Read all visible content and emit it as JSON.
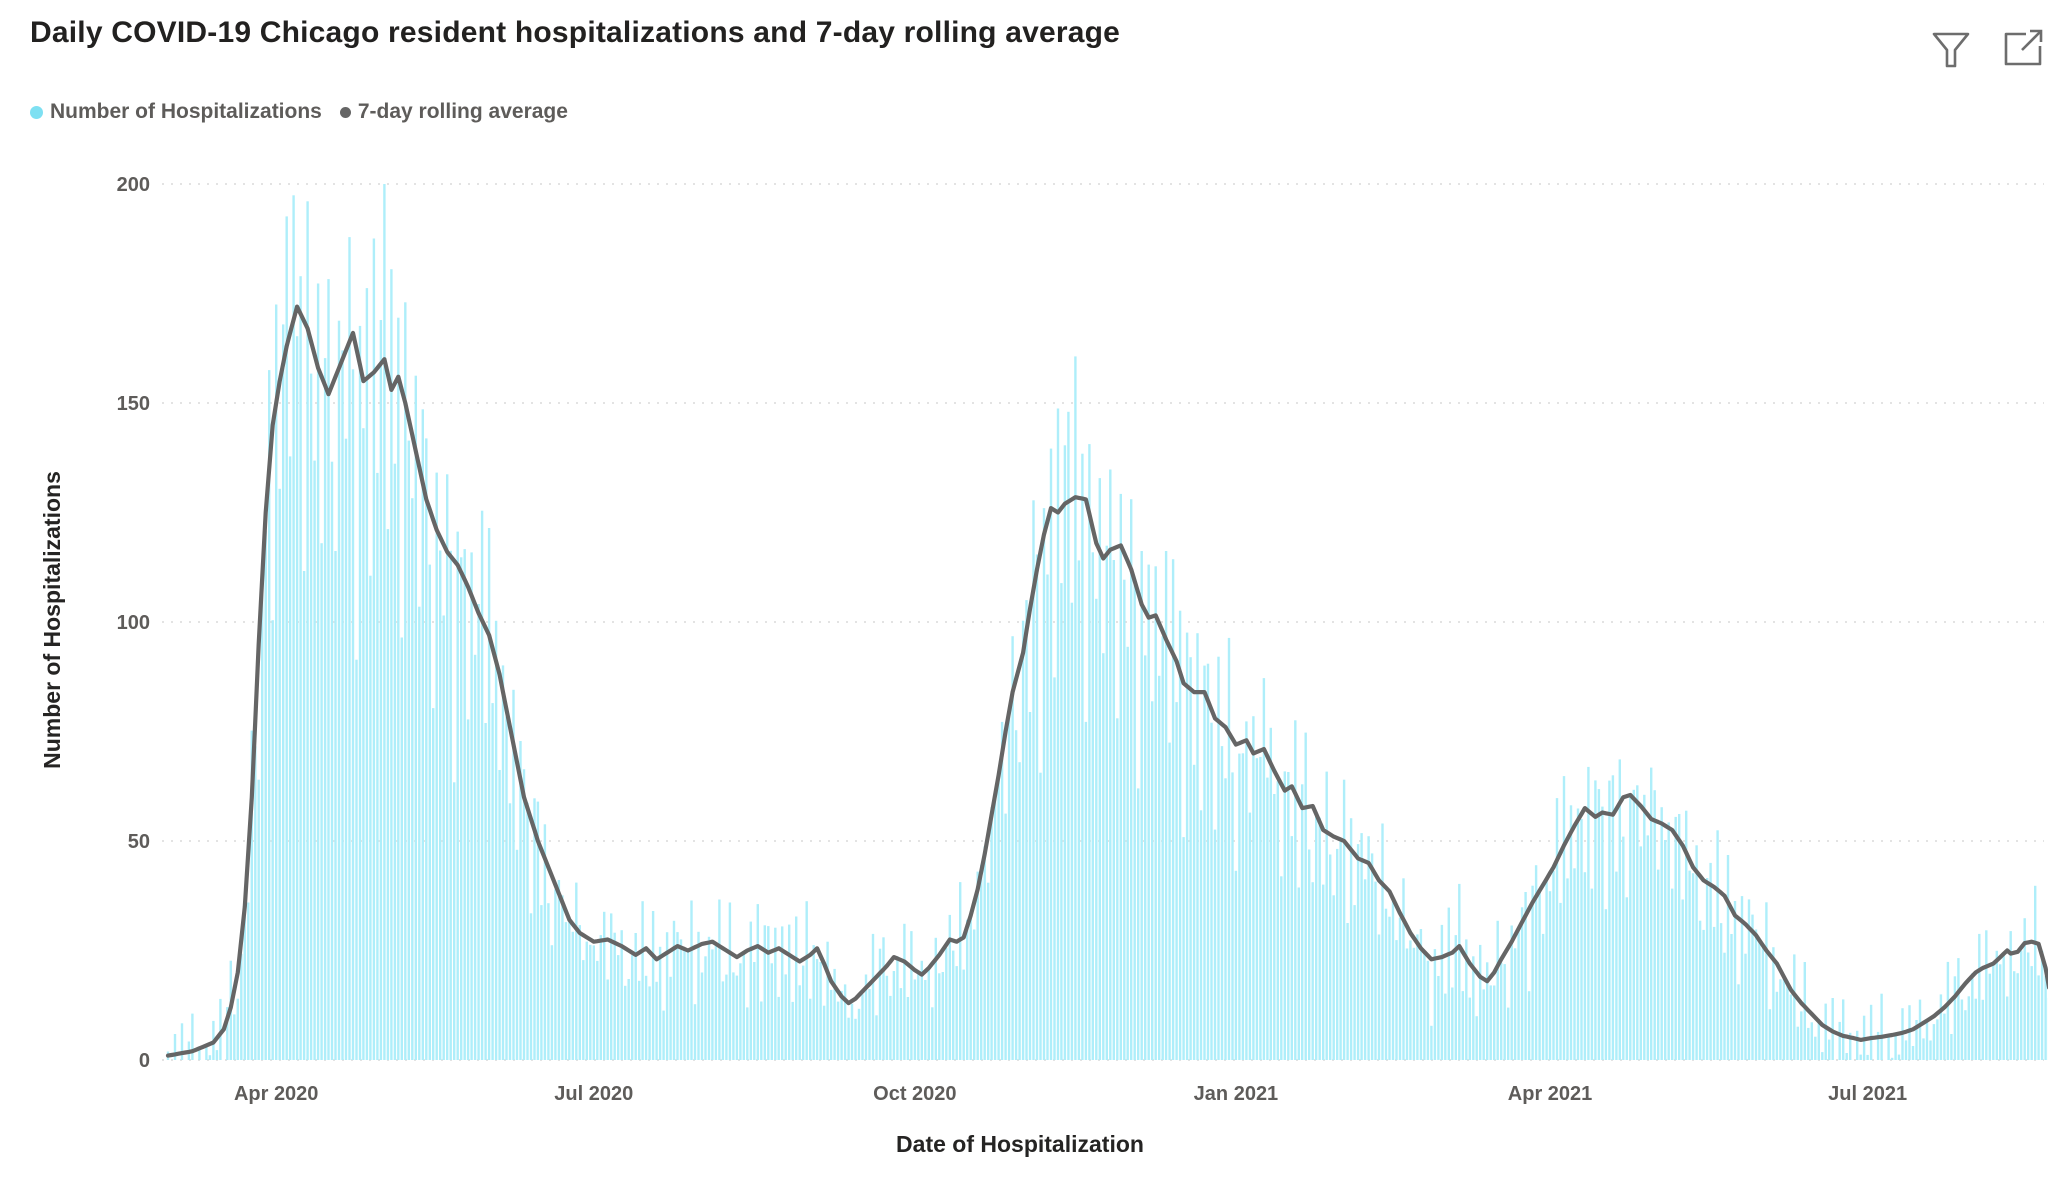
{
  "header": {
    "title": "Daily COVID-19 Chicago resident hospitalizations and 7-day rolling average",
    "icons": {
      "filter": "filter-funnel",
      "popout": "open-in-new-window"
    }
  },
  "chart_data": {
    "type": "combo",
    "title": "Daily COVID-19 Chicago resident hospitalizations and 7-day rolling average",
    "xlabel": "Date of Hospitalization",
    "ylabel": "Number of Hospitalizations",
    "ylim": [
      0,
      200
    ],
    "y_ticks": [
      0,
      50,
      100,
      150,
      200
    ],
    "grid": "dotted-horizontal",
    "legend_position": "top-left",
    "x_range": {
      "start": "2020-03-01",
      "end": "2021-08-22"
    },
    "x_ticks": [
      {
        "date": "2020-04-01",
        "label": "Apr 2020"
      },
      {
        "date": "2020-07-01",
        "label": "Jul 2020"
      },
      {
        "date": "2020-10-01",
        "label": "Oct 2020"
      },
      {
        "date": "2021-01-01",
        "label": "Jan 2021"
      },
      {
        "date": "2021-04-01",
        "label": "Apr 2021"
      },
      {
        "date": "2021-07-01",
        "label": "Jul 2021"
      }
    ],
    "series": [
      {
        "name": "Number of Hospitalizations",
        "type": "bar",
        "color": "#aeeefa",
        "legend_marker_color": "#7ee0f2",
        "note": "daily bars approximated as rolling average interpolated per day, multiplied by bar_noise_pattern and offset by bar_jitter_pattern, clamped to [0,200]",
        "bar_noise_pattern": [
          0.95,
          1.1,
          0.72,
          1.15,
          0.88,
          1.05,
          1.2,
          0.8,
          1.18,
          0.92,
          1.08,
          0.65,
          1.12,
          0.98,
          0.85,
          1.16,
          0.75,
          1.06,
          1.14,
          0.9,
          0.7,
          1.1,
          1.0,
          0.82,
          1.17,
          0.95,
          0.6,
          1.05
        ],
        "bar_jitter_pattern": [
          1,
          -3,
          5,
          -2,
          7,
          -5,
          2,
          9,
          -4,
          0,
          -6
        ]
      },
      {
        "name": "7-day rolling average",
        "type": "line",
        "color": "#656565",
        "legend_marker_color": "#656565",
        "points": [
          [
            "2020-03-01",
            1
          ],
          [
            "2020-03-08",
            2
          ],
          [
            "2020-03-14",
            4
          ],
          [
            "2020-03-17",
            7
          ],
          [
            "2020-03-19",
            12
          ],
          [
            "2020-03-21",
            20
          ],
          [
            "2020-03-23",
            35
          ],
          [
            "2020-03-25",
            60
          ],
          [
            "2020-03-27",
            95
          ],
          [
            "2020-03-29",
            125
          ],
          [
            "2020-03-31",
            145
          ],
          [
            "2020-04-02",
            155
          ],
          [
            "2020-04-04",
            163
          ],
          [
            "2020-04-07",
            172
          ],
          [
            "2020-04-10",
            167
          ],
          [
            "2020-04-13",
            158
          ],
          [
            "2020-04-16",
            152
          ],
          [
            "2020-04-19",
            158
          ],
          [
            "2020-04-23",
            166
          ],
          [
            "2020-04-26",
            155
          ],
          [
            "2020-04-29",
            157
          ],
          [
            "2020-05-02",
            160
          ],
          [
            "2020-05-04",
            153
          ],
          [
            "2020-05-06",
            156
          ],
          [
            "2020-05-08",
            150
          ],
          [
            "2020-05-11",
            139
          ],
          [
            "2020-05-14",
            128
          ],
          [
            "2020-05-17",
            121
          ],
          [
            "2020-05-20",
            116
          ],
          [
            "2020-05-23",
            113
          ],
          [
            "2020-05-26",
            108
          ],
          [
            "2020-05-29",
            102
          ],
          [
            "2020-06-01",
            97
          ],
          [
            "2020-06-04",
            88
          ],
          [
            "2020-06-08",
            72
          ],
          [
            "2020-06-11",
            60
          ],
          [
            "2020-06-15",
            50
          ],
          [
            "2020-06-18",
            44
          ],
          [
            "2020-06-21",
            38
          ],
          [
            "2020-06-24",
            32
          ],
          [
            "2020-06-27",
            29
          ],
          [
            "2020-07-01",
            27
          ],
          [
            "2020-07-05",
            27.5
          ],
          [
            "2020-07-09",
            26
          ],
          [
            "2020-07-13",
            24
          ],
          [
            "2020-07-16",
            25.5
          ],
          [
            "2020-07-19",
            23
          ],
          [
            "2020-07-22",
            24.5
          ],
          [
            "2020-07-25",
            26
          ],
          [
            "2020-07-28",
            25
          ],
          [
            "2020-08-01",
            26.5
          ],
          [
            "2020-08-04",
            27
          ],
          [
            "2020-08-08",
            25
          ],
          [
            "2020-08-11",
            23.5
          ],
          [
            "2020-08-14",
            25
          ],
          [
            "2020-08-17",
            26
          ],
          [
            "2020-08-20",
            24.5
          ],
          [
            "2020-08-23",
            25.5
          ],
          [
            "2020-08-26",
            24
          ],
          [
            "2020-08-29",
            22.5
          ],
          [
            "2020-09-01",
            24
          ],
          [
            "2020-09-03",
            25.5
          ],
          [
            "2020-09-05",
            22
          ],
          [
            "2020-09-07",
            18
          ],
          [
            "2020-09-10",
            14.5
          ],
          [
            "2020-09-12",
            13
          ],
          [
            "2020-09-14",
            14
          ],
          [
            "2020-09-17",
            16.5
          ],
          [
            "2020-09-20",
            19
          ],
          [
            "2020-09-23",
            21.5
          ],
          [
            "2020-09-25",
            23.5
          ],
          [
            "2020-09-28",
            22.5
          ],
          [
            "2020-10-01",
            20.5
          ],
          [
            "2020-10-03",
            19.5
          ],
          [
            "2020-10-05",
            21
          ],
          [
            "2020-10-08",
            24
          ],
          [
            "2020-10-11",
            27.5
          ],
          [
            "2020-10-13",
            27
          ],
          [
            "2020-10-15",
            28
          ],
          [
            "2020-10-17",
            33
          ],
          [
            "2020-10-19",
            39
          ],
          [
            "2020-10-21",
            47
          ],
          [
            "2020-10-23",
            56
          ],
          [
            "2020-10-25",
            65
          ],
          [
            "2020-10-27",
            75
          ],
          [
            "2020-10-29",
            84
          ],
          [
            "2020-11-01",
            93
          ],
          [
            "2020-11-03",
            103
          ],
          [
            "2020-11-05",
            112
          ],
          [
            "2020-11-07",
            120
          ],
          [
            "2020-11-09",
            126
          ],
          [
            "2020-11-11",
            125
          ],
          [
            "2020-11-13",
            127
          ],
          [
            "2020-11-16",
            128.5
          ],
          [
            "2020-11-19",
            128
          ],
          [
            "2020-11-22",
            118
          ],
          [
            "2020-11-24",
            114.5
          ],
          [
            "2020-11-26",
            116.5
          ],
          [
            "2020-11-29",
            117.5
          ],
          [
            "2020-12-02",
            112
          ],
          [
            "2020-12-05",
            104
          ],
          [
            "2020-12-07",
            101
          ],
          [
            "2020-12-09",
            101.5
          ],
          [
            "2020-12-12",
            96
          ],
          [
            "2020-12-15",
            91
          ],
          [
            "2020-12-17",
            86
          ],
          [
            "2020-12-20",
            84
          ],
          [
            "2020-12-23",
            84
          ],
          [
            "2020-12-26",
            78
          ],
          [
            "2020-12-29",
            76
          ],
          [
            "2021-01-01",
            72
          ],
          [
            "2021-01-04",
            73
          ],
          [
            "2021-01-06",
            70
          ],
          [
            "2021-01-09",
            71
          ],
          [
            "2021-01-12",
            66
          ],
          [
            "2021-01-15",
            61.5
          ],
          [
            "2021-01-17",
            62.5
          ],
          [
            "2021-01-20",
            57.5
          ],
          [
            "2021-01-23",
            58
          ],
          [
            "2021-01-26",
            52.5
          ],
          [
            "2021-01-29",
            51
          ],
          [
            "2021-02-01",
            50
          ],
          [
            "2021-02-05",
            46
          ],
          [
            "2021-02-08",
            45
          ],
          [
            "2021-02-11",
            41
          ],
          [
            "2021-02-14",
            38.5
          ],
          [
            "2021-02-17",
            33.5
          ],
          [
            "2021-02-20",
            29
          ],
          [
            "2021-02-23",
            25.5
          ],
          [
            "2021-02-26",
            23
          ],
          [
            "2021-03-01",
            23.5
          ],
          [
            "2021-03-04",
            24.5
          ],
          [
            "2021-03-06",
            26
          ],
          [
            "2021-03-09",
            22
          ],
          [
            "2021-03-12",
            19
          ],
          [
            "2021-03-14",
            18
          ],
          [
            "2021-03-16",
            20
          ],
          [
            "2021-03-18",
            23
          ],
          [
            "2021-03-21",
            27
          ],
          [
            "2021-03-24",
            31.5
          ],
          [
            "2021-03-27",
            36
          ],
          [
            "2021-03-30",
            40
          ],
          [
            "2021-04-02",
            44
          ],
          [
            "2021-04-05",
            49
          ],
          [
            "2021-04-08",
            53.5
          ],
          [
            "2021-04-11",
            57.5
          ],
          [
            "2021-04-14",
            55.5
          ],
          [
            "2021-04-16",
            56.5
          ],
          [
            "2021-04-19",
            56
          ],
          [
            "2021-04-22",
            60
          ],
          [
            "2021-04-24",
            60.5
          ],
          [
            "2021-04-27",
            58
          ],
          [
            "2021-04-30",
            55
          ],
          [
            "2021-05-03",
            54
          ],
          [
            "2021-05-06",
            52.5
          ],
          [
            "2021-05-09",
            49
          ],
          [
            "2021-05-12",
            44
          ],
          [
            "2021-05-15",
            41
          ],
          [
            "2021-05-18",
            39.5
          ],
          [
            "2021-05-21",
            37.5
          ],
          [
            "2021-05-24",
            33
          ],
          [
            "2021-05-27",
            31
          ],
          [
            "2021-05-30",
            28.5
          ],
          [
            "2021-06-02",
            25
          ],
          [
            "2021-06-05",
            22
          ],
          [
            "2021-06-07",
            19
          ],
          [
            "2021-06-09",
            16
          ],
          [
            "2021-06-12",
            13
          ],
          [
            "2021-06-15",
            10.5
          ],
          [
            "2021-06-18",
            8
          ],
          [
            "2021-06-21",
            6.5
          ],
          [
            "2021-06-24",
            5.5
          ],
          [
            "2021-06-27",
            5
          ],
          [
            "2021-06-29",
            4.6
          ],
          [
            "2021-07-02",
            5
          ],
          [
            "2021-07-05",
            5.3
          ],
          [
            "2021-07-08",
            5.7
          ],
          [
            "2021-07-11",
            6.2
          ],
          [
            "2021-07-14",
            7
          ],
          [
            "2021-07-17",
            8.5
          ],
          [
            "2021-07-20",
            10
          ],
          [
            "2021-07-23",
            12
          ],
          [
            "2021-07-26",
            14.5
          ],
          [
            "2021-07-29",
            17.5
          ],
          [
            "2021-08-01",
            20
          ],
          [
            "2021-08-03",
            21
          ],
          [
            "2021-08-06",
            22
          ],
          [
            "2021-08-08",
            23.5
          ],
          [
            "2021-08-10",
            25
          ],
          [
            "2021-08-11",
            24.3
          ],
          [
            "2021-08-13",
            24.7
          ],
          [
            "2021-08-15",
            26.7
          ],
          [
            "2021-08-17",
            27
          ],
          [
            "2021-08-19",
            26.5
          ],
          [
            "2021-08-21",
            21
          ],
          [
            "2021-08-22",
            16.5
          ]
        ]
      }
    ]
  }
}
